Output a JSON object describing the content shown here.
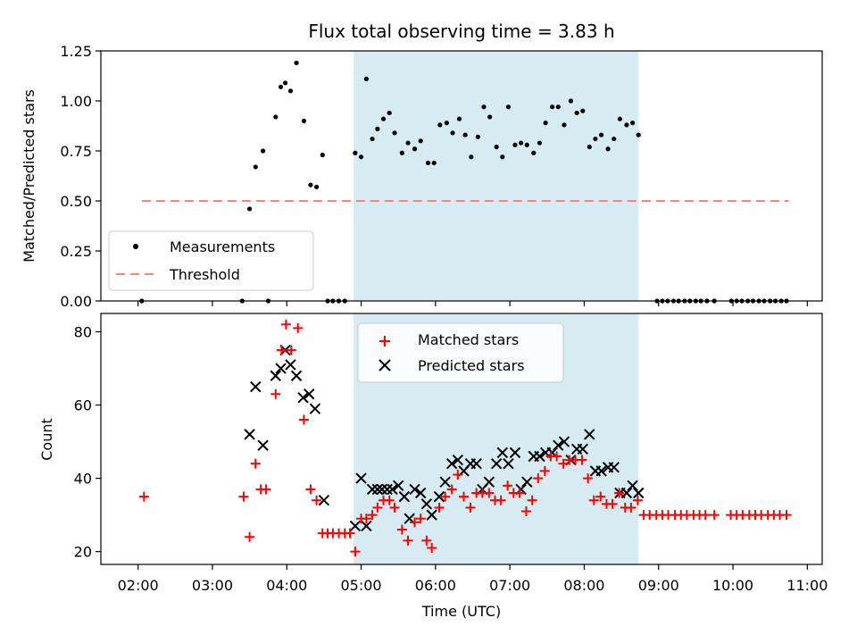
{
  "chart_data": [
    {
      "type": "scatter",
      "title": "Flux total observing time = 3.83 h",
      "ylabel": "Matched/Predicted stars",
      "ylim": [
        0,
        1.25
      ],
      "yticks": [
        "0.00",
        "0.25",
        "0.50",
        "0.75",
        "1.00",
        "1.25"
      ],
      "xlim_hours": [
        1.5,
        11.2
      ],
      "highlight_span_hours": [
        4.9,
        8.73
      ],
      "legend": [
        "Measurements",
        "Threshold"
      ],
      "legend_position": "lower-left",
      "threshold": {
        "value": 0.5,
        "x_range_hours": [
          2.05,
          10.75
        ],
        "color": "#ff7f7f"
      },
      "series": [
        {
          "name": "Measurements",
          "color": "#000000",
          "points": [
            [
              2.05,
              0.0
            ],
            [
              3.4,
              0.0
            ],
            [
              3.5,
              0.46
            ],
            [
              3.58,
              0.67
            ],
            [
              3.68,
              0.75
            ],
            [
              3.75,
              0.0
            ],
            [
              3.85,
              0.92
            ],
            [
              3.92,
              1.07
            ],
            [
              3.98,
              1.09
            ],
            [
              4.05,
              1.05
            ],
            [
              4.13,
              1.19
            ],
            [
              4.23,
              0.9
            ],
            [
              4.32,
              0.58
            ],
            [
              4.4,
              0.57
            ],
            [
              4.48,
              0.73
            ],
            [
              4.55,
              0.0
            ],
            [
              4.62,
              0.0
            ],
            [
              4.7,
              0.0
            ],
            [
              4.78,
              0.0
            ],
            [
              4.92,
              0.74
            ],
            [
              5.0,
              0.72
            ],
            [
              5.07,
              1.11
            ],
            [
              5.15,
              0.81
            ],
            [
              5.22,
              0.86
            ],
            [
              5.3,
              0.91
            ],
            [
              5.38,
              0.94
            ],
            [
              5.45,
              0.84
            ],
            [
              5.55,
              0.74
            ],
            [
              5.63,
              0.79
            ],
            [
              5.72,
              0.76
            ],
            [
              5.8,
              0.8
            ],
            [
              5.9,
              0.69
            ],
            [
              5.98,
              0.69
            ],
            [
              6.06,
              0.88
            ],
            [
              6.15,
              0.89
            ],
            [
              6.23,
              0.84
            ],
            [
              6.32,
              0.91
            ],
            [
              6.4,
              0.83
            ],
            [
              6.48,
              0.72
            ],
            [
              6.57,
              0.82
            ],
            [
              6.65,
              0.97
            ],
            [
              6.73,
              0.92
            ],
            [
              6.82,
              0.77
            ],
            [
              6.9,
              0.72
            ],
            [
              6.98,
              0.97
            ],
            [
              7.07,
              0.78
            ],
            [
              7.15,
              0.79
            ],
            [
              7.23,
              0.78
            ],
            [
              7.32,
              0.74
            ],
            [
              7.4,
              0.79
            ],
            [
              7.48,
              0.89
            ],
            [
              7.57,
              0.97
            ],
            [
              7.65,
              0.97
            ],
            [
              7.73,
              0.88
            ],
            [
              7.82,
              1.0
            ],
            [
              7.9,
              0.94
            ],
            [
              7.98,
              0.95
            ],
            [
              8.07,
              0.77
            ],
            [
              8.15,
              0.81
            ],
            [
              8.23,
              0.83
            ],
            [
              8.32,
              0.76
            ],
            [
              8.4,
              0.81
            ],
            [
              8.48,
              0.91
            ],
            [
              8.57,
              0.88
            ],
            [
              8.65,
              0.89
            ],
            [
              8.73,
              0.83
            ],
            [
              8.98,
              0.0
            ],
            [
              9.05,
              0.0
            ],
            [
              9.12,
              0.0
            ],
            [
              9.2,
              0.0
            ],
            [
              9.27,
              0.0
            ],
            [
              9.35,
              0.0
            ],
            [
              9.42,
              0.0
            ],
            [
              9.5,
              0.0
            ],
            [
              9.57,
              0.0
            ],
            [
              9.65,
              0.0
            ],
            [
              9.75,
              0.0
            ],
            [
              9.98,
              0.0
            ],
            [
              10.05,
              0.0
            ],
            [
              10.12,
              0.0
            ],
            [
              10.2,
              0.0
            ],
            [
              10.27,
              0.0
            ],
            [
              10.35,
              0.0
            ],
            [
              10.42,
              0.0
            ],
            [
              10.5,
              0.0
            ],
            [
              10.57,
              0.0
            ],
            [
              10.65,
              0.0
            ],
            [
              10.72,
              0.0
            ]
          ]
        }
      ]
    },
    {
      "type": "scatter",
      "ylabel": "Count",
      "xlabel": "Time (UTC)",
      "ylim": [
        16.5,
        85
      ],
      "yticks": [
        "20",
        "40",
        "60",
        "80"
      ],
      "xticks": [
        "02:00",
        "03:00",
        "04:00",
        "05:00",
        "06:00",
        "07:00",
        "08:00",
        "09:00",
        "10:00",
        "11:00"
      ],
      "xlim_hours": [
        1.5,
        11.2
      ],
      "highlight_span_hours": [
        4.9,
        8.73
      ],
      "legend": [
        "Matched stars",
        "Predicted stars"
      ],
      "legend_position": "top-center",
      "series": [
        {
          "name": "Matched stars",
          "marker": "plus",
          "color": "#ff0000",
          "points": [
            [
              2.08,
              35
            ],
            [
              3.42,
              35
            ],
            [
              3.5,
              24
            ],
            [
              3.58,
              44
            ],
            [
              3.65,
              37
            ],
            [
              3.72,
              37
            ],
            [
              3.85,
              63
            ],
            [
              3.93,
              75
            ],
            [
              3.99,
              82
            ],
            [
              4.06,
              75
            ],
            [
              4.15,
              81
            ],
            [
              4.23,
              56
            ],
            [
              4.32,
              37
            ],
            [
              4.4,
              34
            ],
            [
              4.48,
              25
            ],
            [
              4.55,
              25
            ],
            [
              4.62,
              25
            ],
            [
              4.7,
              25
            ],
            [
              4.78,
              25
            ],
            [
              4.85,
              25
            ],
            [
              4.92,
              20
            ],
            [
              5.0,
              29
            ],
            [
              5.07,
              29
            ],
            [
              5.15,
              30
            ],
            [
              5.22,
              32
            ],
            [
              5.3,
              34
            ],
            [
              5.38,
              34
            ],
            [
              5.45,
              32
            ],
            [
              5.55,
              26
            ],
            [
              5.63,
              23
            ],
            [
              5.72,
              28
            ],
            [
              5.8,
              29
            ],
            [
              5.88,
              23
            ],
            [
              5.95,
              21
            ],
            [
              6.05,
              32
            ],
            [
              6.13,
              35
            ],
            [
              6.22,
              37
            ],
            [
              6.3,
              41
            ],
            [
              6.38,
              35
            ],
            [
              6.47,
              32
            ],
            [
              6.55,
              36
            ],
            [
              6.63,
              36
            ],
            [
              6.72,
              36
            ],
            [
              6.8,
              34
            ],
            [
              6.88,
              34
            ],
            [
              6.97,
              38
            ],
            [
              7.05,
              36
            ],
            [
              7.13,
              36
            ],
            [
              7.22,
              31
            ],
            [
              7.3,
              34
            ],
            [
              7.38,
              40
            ],
            [
              7.47,
              42
            ],
            [
              7.55,
              46
            ],
            [
              7.63,
              46
            ],
            [
              7.72,
              44
            ],
            [
              7.8,
              45
            ],
            [
              7.88,
              45
            ],
            [
              7.97,
              45
            ],
            [
              8.05,
              40
            ],
            [
              8.13,
              34
            ],
            [
              8.22,
              35
            ],
            [
              8.3,
              33
            ],
            [
              8.38,
              33
            ],
            [
              8.47,
              36
            ],
            [
              8.55,
              32
            ],
            [
              8.63,
              32
            ],
            [
              8.72,
              34
            ],
            [
              8.8,
              30
            ],
            [
              8.88,
              30
            ],
            [
              8.97,
              30
            ],
            [
              9.05,
              30
            ],
            [
              9.13,
              30
            ],
            [
              9.22,
              30
            ],
            [
              9.3,
              30
            ],
            [
              9.38,
              30
            ],
            [
              9.47,
              30
            ],
            [
              9.55,
              30
            ],
            [
              9.63,
              30
            ],
            [
              9.75,
              30
            ],
            [
              9.97,
              30
            ],
            [
              10.05,
              30
            ],
            [
              10.13,
              30
            ],
            [
              10.22,
              30
            ],
            [
              10.3,
              30
            ],
            [
              10.38,
              30
            ],
            [
              10.47,
              30
            ],
            [
              10.55,
              30
            ],
            [
              10.63,
              30
            ],
            [
              10.72,
              30
            ]
          ]
        },
        {
          "name": "Predicted stars",
          "marker": "x",
          "color": "#000000",
          "points": [
            [
              3.5,
              52
            ],
            [
              3.58,
              65
            ],
            [
              3.68,
              49
            ],
            [
              3.85,
              68
            ],
            [
              3.92,
              70
            ],
            [
              3.98,
              75
            ],
            [
              4.05,
              71
            ],
            [
              4.13,
              68
            ],
            [
              4.22,
              62
            ],
            [
              4.3,
              63
            ],
            [
              4.38,
              59
            ],
            [
              4.5,
              34
            ],
            [
              4.92,
              27
            ],
            [
              5.0,
              40
            ],
            [
              5.07,
              27
            ],
            [
              5.15,
              37
            ],
            [
              5.22,
              37
            ],
            [
              5.28,
              37
            ],
            [
              5.35,
              37
            ],
            [
              5.42,
              37
            ],
            [
              5.5,
              38
            ],
            [
              5.58,
              35
            ],
            [
              5.65,
              29
            ],
            [
              5.72,
              37
            ],
            [
              5.8,
              36
            ],
            [
              5.88,
              33
            ],
            [
              5.95,
              30
            ],
            [
              6.05,
              35
            ],
            [
              6.13,
              39
            ],
            [
              6.22,
              44
            ],
            [
              6.3,
              45
            ],
            [
              6.38,
              42
            ],
            [
              6.47,
              44
            ],
            [
              6.55,
              44
            ],
            [
              6.63,
              37
            ],
            [
              6.72,
              39
            ],
            [
              6.82,
              44
            ],
            [
              6.9,
              47
            ],
            [
              6.98,
              44
            ],
            [
              7.07,
              47
            ],
            [
              7.15,
              37
            ],
            [
              7.23,
              39
            ],
            [
              7.32,
              46
            ],
            [
              7.4,
              46
            ],
            [
              7.48,
              47
            ],
            [
              7.57,
              47
            ],
            [
              7.65,
              49
            ],
            [
              7.73,
              50
            ],
            [
              7.82,
              45
            ],
            [
              7.9,
              48
            ],
            [
              7.98,
              48
            ],
            [
              8.07,
              52
            ],
            [
              8.15,
              42
            ],
            [
              8.23,
              42
            ],
            [
              8.32,
              43
            ],
            [
              8.4,
              43
            ],
            [
              8.48,
              36
            ],
            [
              8.57,
              36
            ],
            [
              8.65,
              38
            ],
            [
              8.73,
              36
            ]
          ]
        }
      ]
    }
  ]
}
